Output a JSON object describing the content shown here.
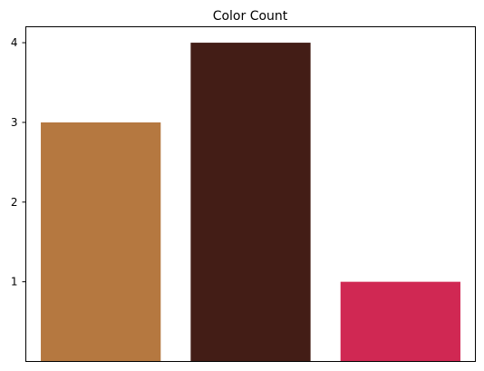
{
  "chart_data": {
    "type": "bar",
    "title": "Color Count",
    "categories": [
      "",
      "",
      ""
    ],
    "values": [
      3,
      4,
      1
    ],
    "colors": [
      "#b57840",
      "#431d16",
      "#d02853"
    ],
    "xlabel": "",
    "ylabel": "",
    "ylim": [
      0,
      4.2
    ],
    "yticks": [
      1,
      2,
      3,
      4
    ],
    "grid": false
  }
}
